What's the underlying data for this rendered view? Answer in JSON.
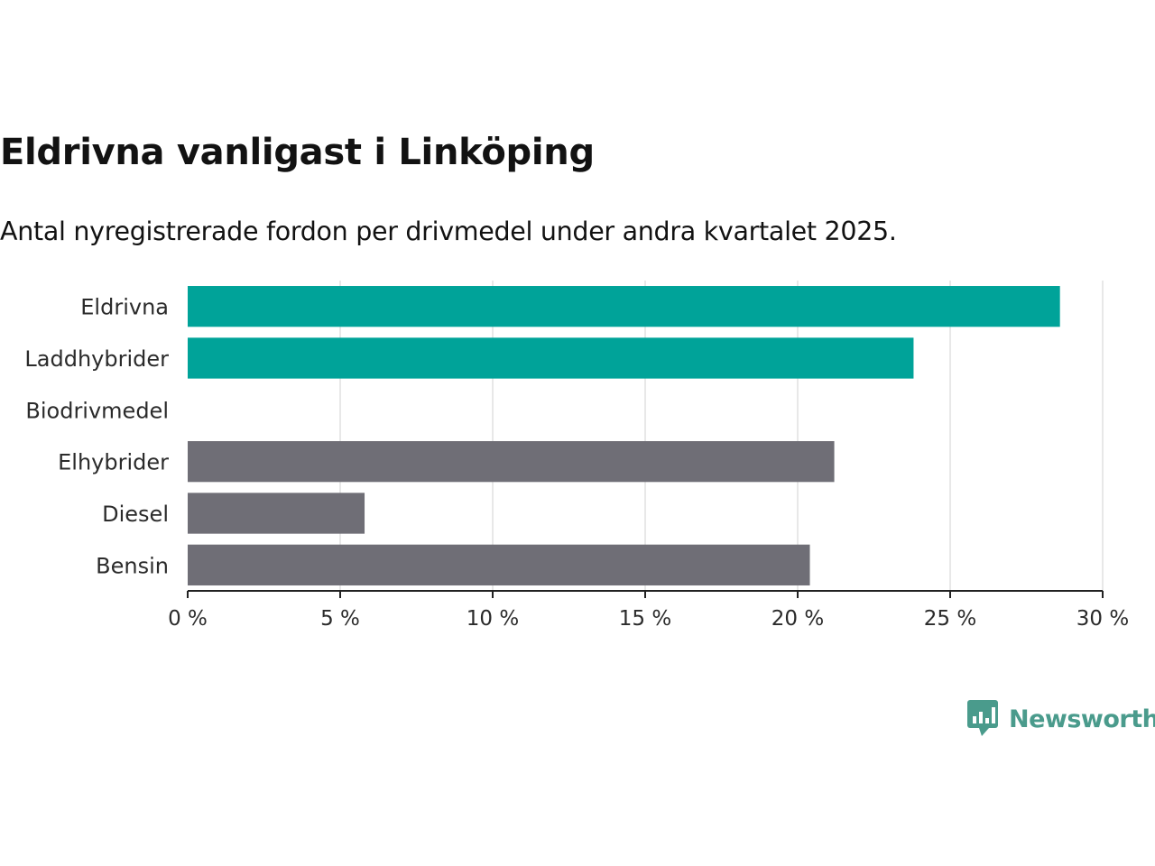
{
  "chart_data": {
    "type": "bar",
    "orientation": "horizontal",
    "title": "Eldrivna vanligast i Linköping",
    "subtitle": "Antal nyregistrerade fordon per drivmedel under andra kvartalet 2025.",
    "categories": [
      "Eldrivna",
      "Laddhybrider",
      "Biodrivmedel",
      "Elhybrider",
      "Diesel",
      "Bensin"
    ],
    "values": [
      28.6,
      23.8,
      0,
      21.2,
      5.8,
      20.4
    ],
    "bar_colors": [
      "#00a399",
      "#00a399",
      "#00a399",
      "#6f6e76",
      "#6f6e76",
      "#6f6e76"
    ],
    "xlim": [
      0,
      30
    ],
    "xticks": [
      0,
      5,
      10,
      15,
      20,
      25,
      30
    ],
    "xtick_labels": [
      "0 %",
      "5 %",
      "10 %",
      "15 %",
      "20 %",
      "25 %",
      "30 %"
    ],
    "xlabel": "",
    "ylabel": "",
    "grid": true,
    "gridline_color": "#e0e0e0"
  },
  "brand": {
    "name": "Newsworthy",
    "icon": "bar-chart-speech-bubble-icon",
    "color": "#4a9b8c"
  }
}
